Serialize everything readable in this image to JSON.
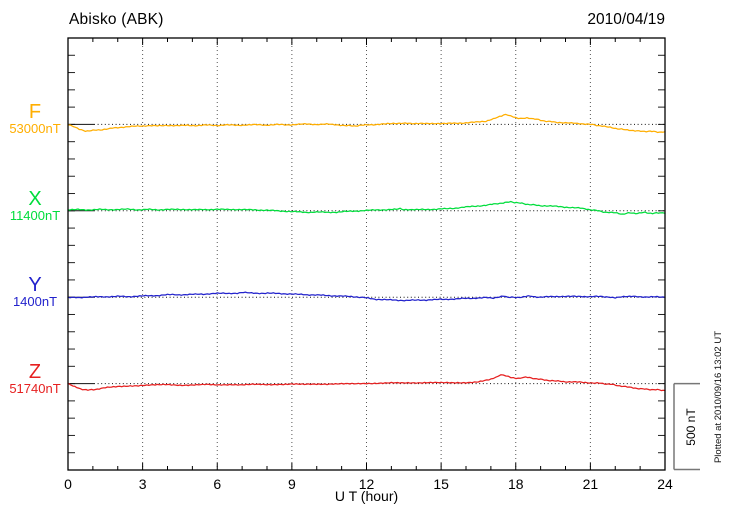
{
  "header": {
    "title": "Abisko (ABK)",
    "date": "2010/04/19"
  },
  "x_axis": {
    "label": "U T (hour)"
  },
  "scale_bar": {
    "label": "500 nT"
  },
  "footer_note": "Plotted at 2010/09/16 13:02 UT",
  "chart_data": {
    "type": "line",
    "title": "Abisko (ABK)",
    "date": "2010/04/19",
    "xlabel": "U T (hour)",
    "x_range": [
      0,
      24
    ],
    "x_major_ticks": [
      0,
      3,
      6,
      9,
      12,
      15,
      18,
      21,
      24
    ],
    "x_minor_step_hours": 1,
    "grid": "dotted vertical lines every 3 h; dotted horizontal baseline per trace",
    "y_minor_tick_nT": 100,
    "baseline_spacing_nT": 500,
    "scale_bar_nT": 500,
    "series": [
      {
        "name": "F",
        "baseline_label": "53000nT",
        "baseline_nT": 53000,
        "color": "#ffae00",
        "points_h_dnT": [
          [
            0,
            0
          ],
          [
            0.2,
            -12
          ],
          [
            0.45,
            -28
          ],
          [
            0.7,
            -38
          ],
          [
            1,
            -35
          ],
          [
            1.3,
            -31
          ],
          [
            1.7,
            -24
          ],
          [
            2,
            -18
          ],
          [
            2.4,
            -14
          ],
          [
            2.8,
            -10
          ],
          [
            3.2,
            -7
          ],
          [
            3.6,
            -9
          ],
          [
            4,
            -5
          ],
          [
            4.4,
            -8
          ],
          [
            4.8,
            -5
          ],
          [
            5.2,
            -7
          ],
          [
            5.6,
            -4
          ],
          [
            6,
            -6
          ],
          [
            6.4,
            -3
          ],
          [
            6.8,
            -5
          ],
          [
            7.2,
            -3
          ],
          [
            7.6,
            -2
          ],
          [
            8,
            -4
          ],
          [
            8.4,
            -1
          ],
          [
            8.8,
            -3
          ],
          [
            9.2,
            0
          ],
          [
            9.6,
            2
          ],
          [
            10,
            0
          ],
          [
            10.4,
            1
          ],
          [
            10.8,
            -2
          ],
          [
            11.2,
            -7
          ],
          [
            11.5,
            -9
          ],
          [
            11.8,
            -5
          ],
          [
            12.2,
            -2
          ],
          [
            12.6,
            2
          ],
          [
            13,
            4
          ],
          [
            13.4,
            8
          ],
          [
            13.7,
            5
          ],
          [
            14,
            6
          ],
          [
            14.4,
            4
          ],
          [
            14.8,
            6
          ],
          [
            15.2,
            5
          ],
          [
            15.6,
            7
          ],
          [
            16,
            9
          ],
          [
            16.4,
            13
          ],
          [
            16.8,
            19
          ],
          [
            17.1,
            31
          ],
          [
            17.35,
            45
          ],
          [
            17.6,
            58
          ],
          [
            17.8,
            47
          ],
          [
            18,
            39
          ],
          [
            18.2,
            35
          ],
          [
            18.45,
            39
          ],
          [
            18.7,
            33
          ],
          [
            19,
            24
          ],
          [
            19.3,
            17
          ],
          [
            19.6,
            13
          ],
          [
            20,
            9
          ],
          [
            20.4,
            6
          ],
          [
            20.8,
            3
          ],
          [
            21.1,
            -2
          ],
          [
            21.4,
            -8
          ],
          [
            21.8,
            -18
          ],
          [
            22.1,
            -25
          ],
          [
            22.4,
            -31
          ],
          [
            22.8,
            -36
          ],
          [
            23.1,
            -41
          ],
          [
            23.4,
            -39
          ],
          [
            23.7,
            -45
          ],
          [
            24,
            -42
          ]
        ]
      },
      {
        "name": "X",
        "baseline_label": "11400nT",
        "baseline_nT": 11400,
        "color": "#00dd3c",
        "points_h_dnT": [
          [
            0,
            6
          ],
          [
            0.4,
            7
          ],
          [
            0.8,
            5
          ],
          [
            1.2,
            8
          ],
          [
            1.6,
            6
          ],
          [
            2,
            8
          ],
          [
            2.4,
            9
          ],
          [
            2.8,
            6
          ],
          [
            3.2,
            8
          ],
          [
            3.6,
            5
          ],
          [
            4,
            9
          ],
          [
            4.4,
            7
          ],
          [
            4.8,
            8
          ],
          [
            5.2,
            6
          ],
          [
            5.6,
            7
          ],
          [
            6,
            9
          ],
          [
            6.4,
            7
          ],
          [
            6.8,
            8
          ],
          [
            7.2,
            6
          ],
          [
            7.6,
            5
          ],
          [
            8,
            3
          ],
          [
            8.4,
            0
          ],
          [
            8.8,
            -3
          ],
          [
            9.2,
            -6
          ],
          [
            9.6,
            -9
          ],
          [
            10,
            -7
          ],
          [
            10.4,
            -9
          ],
          [
            10.8,
            -8
          ],
          [
            11.2,
            -4
          ],
          [
            11.6,
            -1
          ],
          [
            12,
            2
          ],
          [
            12.4,
            5
          ],
          [
            12.8,
            6
          ],
          [
            13.2,
            8
          ],
          [
            13.35,
            14
          ],
          [
            13.5,
            7
          ],
          [
            14,
            6
          ],
          [
            14.4,
            8
          ],
          [
            14.8,
            9
          ],
          [
            15.2,
            12
          ],
          [
            15.6,
            16
          ],
          [
            16,
            22
          ],
          [
            16.4,
            27
          ],
          [
            16.8,
            32
          ],
          [
            17.2,
            40
          ],
          [
            17.5,
            46
          ],
          [
            17.8,
            52
          ],
          [
            18.1,
            46
          ],
          [
            18.4,
            39
          ],
          [
            18.7,
            34
          ],
          [
            19,
            30
          ],
          [
            19.4,
            27
          ],
          [
            19.8,
            24
          ],
          [
            20.2,
            19
          ],
          [
            20.6,
            15
          ],
          [
            21,
            7
          ],
          [
            21.3,
            0
          ],
          [
            21.6,
            -8
          ],
          [
            22,
            -12
          ],
          [
            22.3,
            -19
          ],
          [
            22.6,
            -12
          ],
          [
            22.9,
            -15
          ],
          [
            23.2,
            -9
          ],
          [
            23.5,
            -16
          ],
          [
            23.8,
            -11
          ],
          [
            24,
            -14
          ]
        ]
      },
      {
        "name": "Y",
        "baseline_label": "1400nT",
        "baseline_nT": 1400,
        "color": "#2222cc",
        "points_h_dnT": [
          [
            0,
            -3
          ],
          [
            0.4,
            -2
          ],
          [
            0.8,
            1
          ],
          [
            1.2,
            2
          ],
          [
            1.6,
            3
          ],
          [
            2,
            5
          ],
          [
            2.4,
            3
          ],
          [
            2.8,
            6
          ],
          [
            3.2,
            8
          ],
          [
            3.6,
            10
          ],
          [
            4,
            14
          ],
          [
            4.2,
            17
          ],
          [
            4.4,
            14
          ],
          [
            4.8,
            15
          ],
          [
            5.2,
            17
          ],
          [
            5.6,
            19
          ],
          [
            6,
            22
          ],
          [
            6.4,
            23
          ],
          [
            6.8,
            22
          ],
          [
            7.05,
            27
          ],
          [
            7.3,
            24
          ],
          [
            7.7,
            23
          ],
          [
            8.1,
            23
          ],
          [
            8.5,
            21
          ],
          [
            8.9,
            19
          ],
          [
            9.3,
            16
          ],
          [
            9.7,
            14
          ],
          [
            10.1,
            12
          ],
          [
            10.5,
            9
          ],
          [
            10.9,
            7
          ],
          [
            11.3,
            4
          ],
          [
            11.7,
            1
          ],
          [
            12,
            -4
          ],
          [
            12.4,
            -12
          ],
          [
            12.8,
            -15
          ],
          [
            13.2,
            -17
          ],
          [
            13.6,
            -19
          ],
          [
            14,
            -17
          ],
          [
            14.4,
            -16
          ],
          [
            14.8,
            -14
          ],
          [
            15.2,
            -12
          ],
          [
            15.6,
            -10
          ],
          [
            16,
            -7
          ],
          [
            16.4,
            -5
          ],
          [
            16.8,
            -3
          ],
          [
            17.1,
            -4
          ],
          [
            17.35,
            2
          ],
          [
            17.5,
            6
          ],
          [
            17.7,
            0
          ],
          [
            18,
            -2
          ],
          [
            18.3,
            2
          ],
          [
            18.5,
            9
          ],
          [
            18.7,
            3
          ],
          [
            19,
            0
          ],
          [
            19.4,
            3
          ],
          [
            19.8,
            5
          ],
          [
            20.2,
            4
          ],
          [
            20.6,
            5
          ],
          [
            21,
            3
          ],
          [
            21.4,
            4
          ],
          [
            21.8,
            1
          ],
          [
            22,
            -3
          ],
          [
            22.25,
            4
          ],
          [
            22.5,
            6
          ],
          [
            22.8,
            3
          ],
          [
            23.2,
            2
          ],
          [
            23.6,
            2
          ],
          [
            24,
            -1
          ]
        ]
      },
      {
        "name": "Z",
        "baseline_label": "51740nT",
        "baseline_nT": 51740,
        "color": "#e62020",
        "points_h_dnT": [
          [
            0,
            0
          ],
          [
            0.2,
            -15
          ],
          [
            0.5,
            -30
          ],
          [
            0.8,
            -38
          ],
          [
            1.1,
            -33
          ],
          [
            1.5,
            -24
          ],
          [
            2,
            -18
          ],
          [
            2.5,
            -13
          ],
          [
            3,
            -10
          ],
          [
            3.5,
            -8
          ],
          [
            4,
            -6
          ],
          [
            4.5,
            -9
          ],
          [
            5,
            -8
          ],
          [
            5.5,
            -6
          ],
          [
            6,
            -8
          ],
          [
            6.5,
            -5
          ],
          [
            7,
            -7
          ],
          [
            7.5,
            -5
          ],
          [
            8,
            -6
          ],
          [
            8.5,
            -4
          ],
          [
            9,
            -3
          ],
          [
            9.5,
            -5
          ],
          [
            10,
            -3
          ],
          [
            10.5,
            -2
          ],
          [
            11,
            -1
          ],
          [
            11.5,
            -2
          ],
          [
            12,
            1
          ],
          [
            12.5,
            3
          ],
          [
            13,
            4
          ],
          [
            13.5,
            3
          ],
          [
            14,
            5
          ],
          [
            14.5,
            7
          ],
          [
            15,
            5
          ],
          [
            15.5,
            4
          ],
          [
            16,
            6
          ],
          [
            16.5,
            11
          ],
          [
            17,
            24
          ],
          [
            17.2,
            37
          ],
          [
            17.4,
            52
          ],
          [
            17.6,
            44
          ],
          [
            17.8,
            36
          ],
          [
            18,
            32
          ],
          [
            18.2,
            31
          ],
          [
            18.4,
            37
          ],
          [
            18.7,
            31
          ],
          [
            19,
            24
          ],
          [
            19.3,
            19
          ],
          [
            19.7,
            14
          ],
          [
            20,
            11
          ],
          [
            20.4,
            9
          ],
          [
            20.8,
            6
          ],
          [
            21.2,
            4
          ],
          [
            21.5,
            0
          ],
          [
            21.8,
            -4
          ],
          [
            22.1,
            -11
          ],
          [
            22.4,
            -18
          ],
          [
            22.8,
            -26
          ],
          [
            23.1,
            -31
          ],
          [
            23.4,
            -34
          ],
          [
            23.7,
            -36
          ],
          [
            24,
            -40
          ]
        ]
      }
    ]
  }
}
